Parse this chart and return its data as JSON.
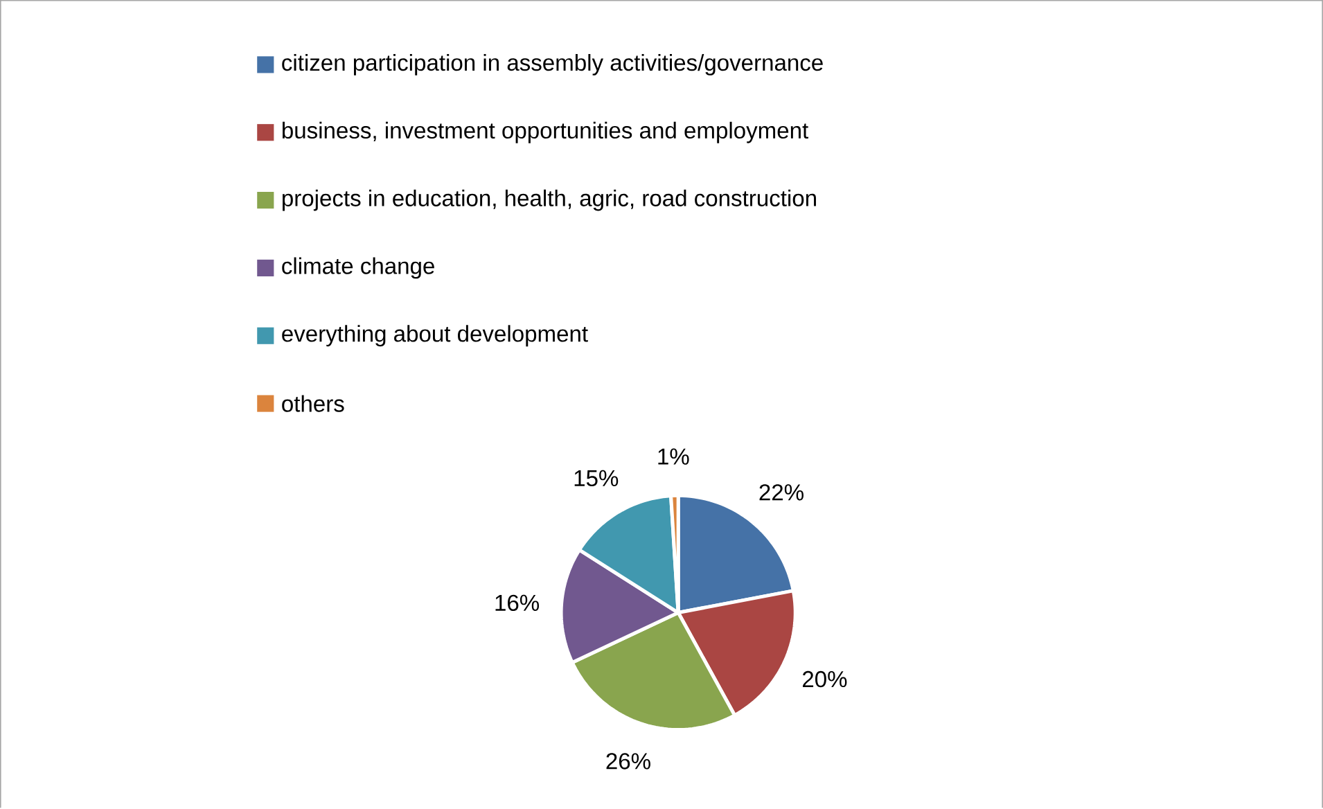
{
  "chart_data": {
    "type": "pie",
    "categories": [
      "citizen participation in assembly activities/governance",
      "business, investment opportunities and employment",
      "projects in education, health, agric, road construction",
      "climate change",
      "everything about development",
      "others"
    ],
    "values": [
      22,
      20,
      26,
      16,
      15,
      1
    ],
    "colors": [
      "#4572a7",
      "#aa4643",
      "#89a54e",
      "#71588f",
      "#4198af",
      "#db843d"
    ],
    "value_labels": [
      "22%",
      "20%",
      "26%",
      "16%",
      "15%",
      "1%"
    ],
    "legend": "top"
  }
}
